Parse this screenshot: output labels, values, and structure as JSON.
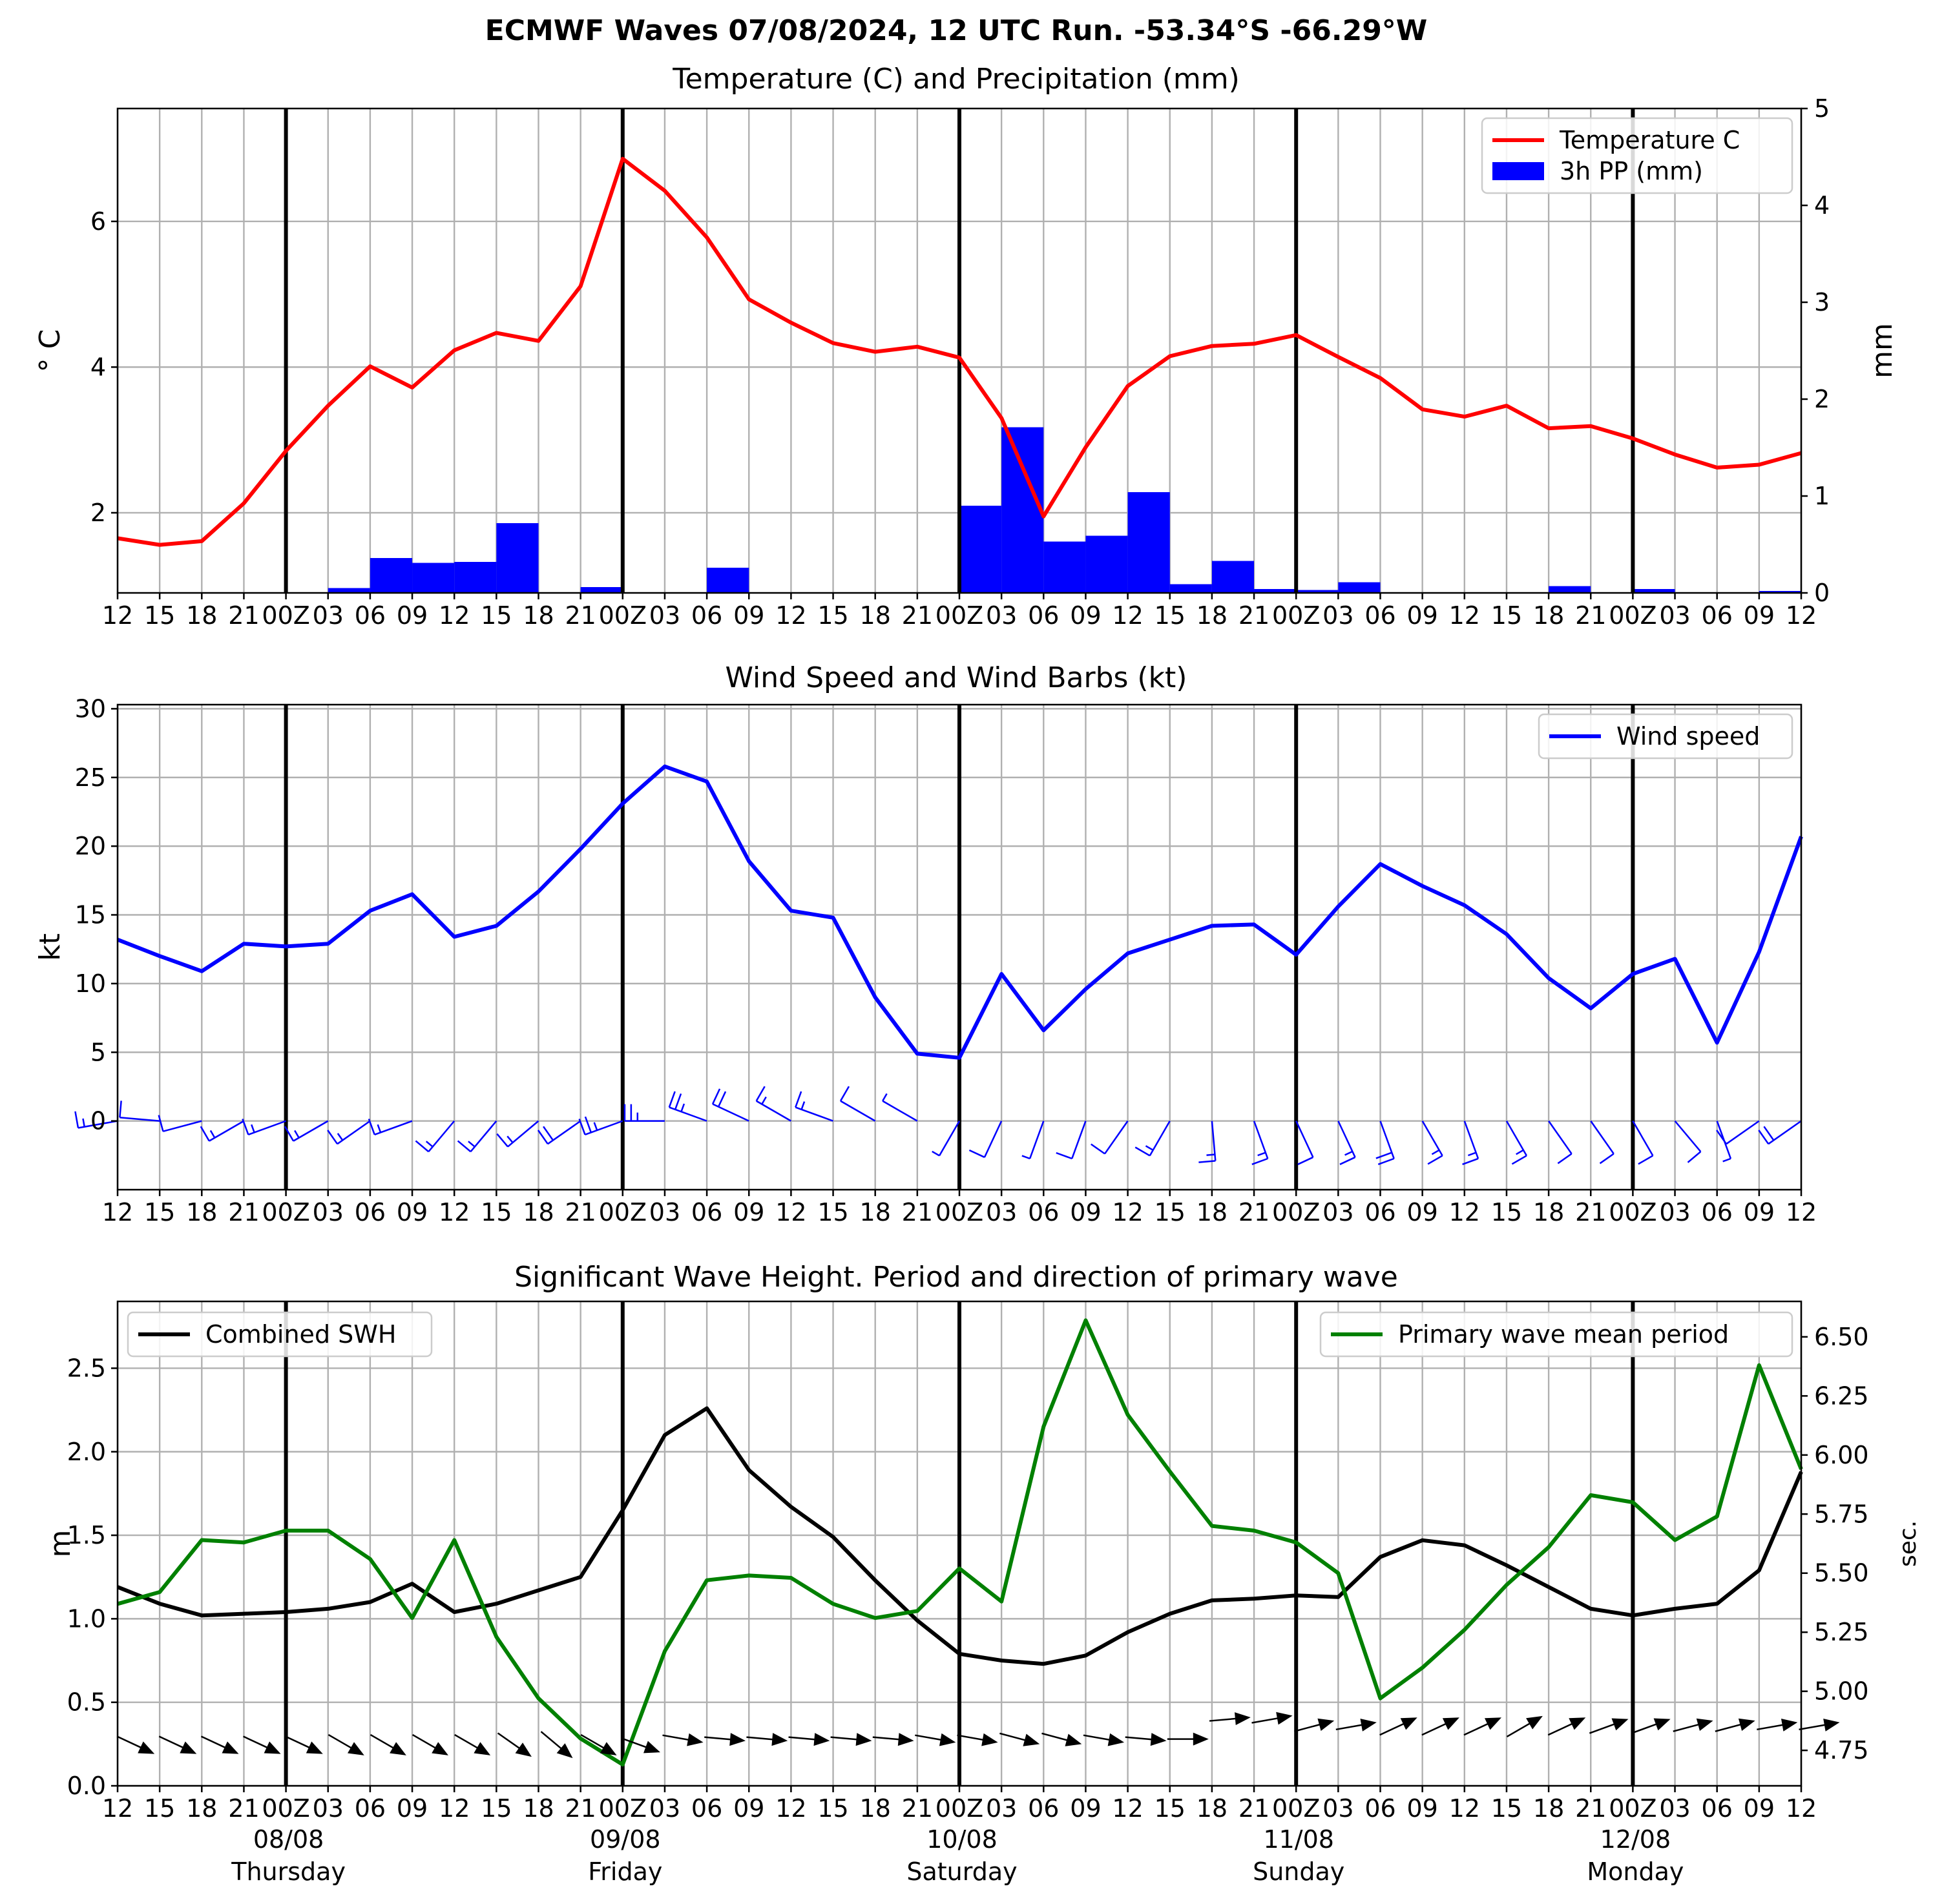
{
  "suptitle": "ECMWF Waves 07/08/2024, 12 UTC Run. -53.34°S -66.29°W",
  "chart_data": [
    {
      "type": "line",
      "title": "Temperature (C) and Precipitation (mm)",
      "ylabel": "$^\\circ$ C",
      "ylabel_display": "° C",
      "ylabel_right": "mm",
      "x_tick_labels": [
        "12",
        "15",
        "18",
        "21",
        "00Z",
        "03",
        "06",
        "09",
        "12",
        "15",
        "18",
        "21",
        "00Z",
        "03",
        "06",
        "09",
        "12",
        "15",
        "18",
        "21",
        "00Z",
        "03",
        "06",
        "09",
        "12",
        "15",
        "18",
        "21",
        "00Z",
        "03",
        "06",
        "09",
        "12",
        "15",
        "18",
        "21",
        "00Z",
        "03",
        "06",
        "09",
        "12"
      ],
      "ylim": [
        0.9,
        7.55
      ],
      "yticks": [
        2,
        4,
        6
      ],
      "ylim_right": [
        0,
        5
      ],
      "yticks_right": [
        0,
        1,
        2,
        3,
        4,
        5
      ],
      "grid": true,
      "legend": {
        "placement": "top-right",
        "entries": [
          "Temperature C",
          "3h PP (mm)"
        ]
      },
      "series": [
        {
          "name": "Temperature C",
          "axis": "left",
          "color": "#ff0000",
          "values": [
            1.65,
            1.56,
            1.61,
            2.13,
            2.85,
            3.47,
            4.01,
            3.72,
            4.23,
            4.47,
            4.36,
            5.11,
            6.86,
            6.42,
            5.78,
            4.93,
            4.61,
            4.33,
            4.21,
            4.28,
            4.13,
            3.3,
            1.95,
            2.9,
            3.74,
            4.15,
            4.29,
            4.32,
            4.44,
            4.14,
            3.85,
            3.42,
            3.32,
            3.47,
            3.16,
            3.19,
            3.02,
            2.8,
            2.62,
            2.66,
            2.82
          ]
        },
        {
          "name": "3h PP (mm)",
          "axis": "right",
          "color": "#0000ff",
          "kind": "bar",
          "values": [
            0,
            0,
            0,
            0,
            0,
            0.05,
            0.36,
            0.31,
            0.32,
            0.72,
            0,
            0.06,
            0,
            0,
            0.26,
            0,
            0,
            0,
            0,
            0,
            0.9,
            1.71,
            0.53,
            0.59,
            1.04,
            0.09,
            0.33,
            0.04,
            0.03,
            0.11,
            0,
            0,
            0,
            0,
            0.07,
            0,
            0.04,
            0,
            0,
            0.02
          ]
        }
      ]
    },
    {
      "type": "line",
      "title": "Wind Speed and Wind Barbs (kt)",
      "ylabel": "kt",
      "x_tick_labels": [
        "12",
        "15",
        "18",
        "21",
        "00Z",
        "03",
        "06",
        "09",
        "12",
        "15",
        "18",
        "21",
        "00Z",
        "03",
        "06",
        "09",
        "12",
        "15",
        "18",
        "21",
        "00Z",
        "03",
        "06",
        "09",
        "12",
        "15",
        "18",
        "21",
        "00Z",
        "03",
        "06",
        "09",
        "12",
        "15",
        "18",
        "21",
        "00Z",
        "03",
        "06",
        "09",
        "12"
      ],
      "ylim": [
        -5,
        30.3
      ],
      "yticks": [
        0,
        5,
        10,
        15,
        20,
        25,
        30
      ],
      "grid": true,
      "legend": {
        "placement": "top-right",
        "entries": [
          "Wind speed"
        ]
      },
      "series": [
        {
          "name": "Wind speed",
          "color": "#0000ff",
          "values": [
            13.2,
            12.0,
            10.9,
            12.9,
            12.7,
            12.9,
            15.3,
            16.5,
            13.4,
            14.2,
            16.7,
            19.8,
            23.1,
            25.8,
            24.7,
            18.9,
            15.3,
            14.8,
            9.0,
            4.9,
            4.6,
            10.7,
            6.6,
            9.6,
            12.2,
            13.2,
            14.2,
            14.3,
            12.1,
            15.6,
            18.7,
            17.1,
            15.7,
            13.6,
            10.4,
            8.2,
            10.7,
            11.8,
            5.7,
            12.3,
            20.7
          ]
        }
      ],
      "wind_barb_directions_deg": [
        260,
        275,
        255,
        240,
        250,
        240,
        235,
        250,
        220,
        220,
        230,
        235,
        250,
        270,
        290,
        295,
        300,
        290,
        300,
        300,
        210,
        205,
        200,
        200,
        215,
        210,
        175,
        160,
        155,
        155,
        160,
        150,
        160,
        150,
        145,
        145,
        150,
        140,
        160,
        235,
        235
      ]
    },
    {
      "type": "line",
      "title": "Significant Wave Height. Period and direction of primary wave",
      "ylabel": "m",
      "ylabel_right": "sec.",
      "x_tick_labels": [
        "12",
        "15",
        "18",
        "21",
        "00Z",
        "03",
        "06",
        "09",
        "12",
        "15",
        "18",
        "21",
        "00Z",
        "03",
        "06",
        "09",
        "12",
        "15",
        "18",
        "21",
        "00Z",
        "03",
        "06",
        "09",
        "12",
        "15",
        "18",
        "21",
        "00Z",
        "03",
        "06",
        "09",
        "12",
        "15",
        "18",
        "21",
        "00Z",
        "03",
        "06",
        "09",
        "12"
      ],
      "x_day_labels": [
        {
          "date": "08/08",
          "day": "Thursday"
        },
        {
          "date": "09/08",
          "day": "Friday"
        },
        {
          "date": "10/08",
          "day": "Saturday"
        },
        {
          "date": "11/08",
          "day": "Sunday"
        },
        {
          "date": "12/08",
          "day": "Monday"
        }
      ],
      "ylim": [
        0,
        2.9
      ],
      "yticks": [
        0.0,
        0.5,
        1.0,
        1.5,
        2.0,
        2.5
      ],
      "ylim_right": [
        4.6,
        6.65
      ],
      "yticks_right": [
        4.75,
        5.0,
        5.25,
        5.5,
        5.75,
        6.0,
        6.25,
        6.5
      ],
      "grid": true,
      "legend_left": {
        "placement": "top-left",
        "entries": [
          "Combined SWH"
        ]
      },
      "legend_right": {
        "placement": "top-right",
        "entries": [
          "Primary wave mean period"
        ]
      },
      "series": [
        {
          "name": "Combined SWH",
          "axis": "left",
          "color": "#000000",
          "values": [
            1.19,
            1.09,
            1.02,
            1.03,
            1.04,
            1.06,
            1.1,
            1.21,
            1.04,
            1.09,
            1.17,
            1.25,
            1.65,
            2.1,
            2.26,
            1.89,
            1.67,
            1.49,
            1.23,
            0.99,
            0.79,
            0.75,
            0.73,
            0.78,
            0.92,
            1.03,
            1.11,
            1.12,
            1.14,
            1.13,
            1.37,
            1.47,
            1.44,
            1.32,
            1.19,
            1.06,
            1.02,
            1.06,
            1.09,
            1.29,
            1.88
          ]
        },
        {
          "name": "Primary wave mean period",
          "axis": "right",
          "color": "#008000",
          "values": [
            5.37,
            5.42,
            5.64,
            5.63,
            5.68,
            5.68,
            5.56,
            5.31,
            5.64,
            5.23,
            4.97,
            4.8,
            4.69,
            5.17,
            5.47,
            5.49,
            5.48,
            5.37,
            5.31,
            5.34,
            5.52,
            5.38,
            6.12,
            6.57,
            6.17,
            5.93,
            5.7,
            5.68,
            5.63,
            5.5,
            4.97,
            5.1,
            5.26,
            5.45,
            5.61,
            5.83,
            5.8,
            5.64,
            5.74,
            6.38,
            5.94
          ]
        }
      ],
      "wave_direction_arrow_angles_deg": [
        -25,
        -25,
        -25,
        -25,
        -25,
        -30,
        -30,
        -30,
        -30,
        -35,
        -40,
        -30,
        -20,
        -10,
        -5,
        -5,
        -5,
        -5,
        -5,
        -10,
        -10,
        -15,
        -15,
        -10,
        -5,
        0,
        5,
        10,
        15,
        10,
        25,
        25,
        25,
        30,
        25,
        20,
        20,
        15,
        15,
        10,
        10
      ]
    }
  ]
}
